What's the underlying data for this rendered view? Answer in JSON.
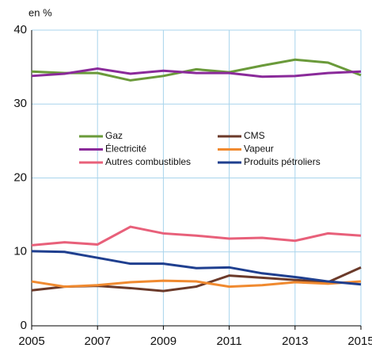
{
  "chart_data": {
    "type": "line",
    "y_label": "en %",
    "x": [
      2005,
      2006,
      2007,
      2008,
      2009,
      2010,
      2011,
      2012,
      2013,
      2014,
      2015
    ],
    "xlim": [
      2005,
      2015
    ],
    "xticks": [
      2005,
      2007,
      2009,
      2011,
      2013,
      2015
    ],
    "ylim": [
      0,
      40
    ],
    "yticks": [
      0,
      10,
      20,
      30,
      40
    ],
    "grid": true,
    "series": [
      {
        "name": "Gaz",
        "color": "#6a9a3a",
        "values": [
          34.4,
          34.2,
          34.2,
          33.2,
          33.8,
          34.7,
          34.3,
          35.2,
          36.0,
          35.6,
          33.9
        ]
      },
      {
        "name": "CMS",
        "color": "#6b3a2a",
        "values": [
          4.8,
          5.3,
          5.4,
          5.1,
          4.7,
          5.3,
          6.8,
          6.5,
          6.2,
          5.9,
          7.9
        ]
      },
      {
        "name": "Électricité",
        "color": "#8a2a9a",
        "values": [
          33.8,
          34.1,
          34.8,
          34.1,
          34.5,
          34.2,
          34.2,
          33.7,
          33.8,
          34.2,
          34.4
        ]
      },
      {
        "name": "Vapeur",
        "color": "#f08a30",
        "values": [
          6.0,
          5.3,
          5.5,
          5.9,
          6.1,
          6.0,
          5.3,
          5.5,
          5.9,
          5.7,
          6.0
        ]
      },
      {
        "name": "Autres combustibles",
        "color": "#e8607a",
        "values": [
          10.9,
          11.3,
          11.0,
          13.4,
          12.5,
          12.2,
          11.8,
          11.9,
          11.5,
          12.5,
          12.2
        ]
      },
      {
        "name": "Produits pétroliers",
        "color": "#1f3f8f",
        "values": [
          10.1,
          10.0,
          9.2,
          8.4,
          8.4,
          7.8,
          7.9,
          7.1,
          6.6,
          6.0,
          5.6
        ]
      }
    ]
  }
}
